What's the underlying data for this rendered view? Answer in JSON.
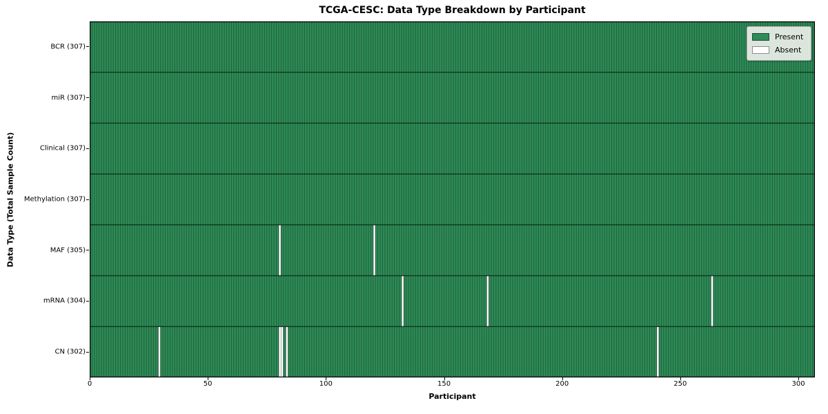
{
  "chart_data": {
    "type": "heatmap",
    "title": "TCGA-CESC: Data Type Breakdown by Participant",
    "xlabel": "Participant",
    "ylabel": "Data Type (Total Sample Count)",
    "n_participants": 307,
    "x_range": [
      0,
      307
    ],
    "x_ticks": [
      0,
      50,
      100,
      150,
      200,
      250,
      300
    ],
    "grid": "cell-edges",
    "legend_position": "upper right",
    "legend": [
      {
        "label": "Present",
        "color": "#2e8b57"
      },
      {
        "label": "Absent",
        "color": "#ffffff"
      }
    ],
    "rows": [
      {
        "label": "BCR (307)",
        "name": "BCR",
        "total": 307,
        "absent_participants": []
      },
      {
        "label": "miR (307)",
        "name": "miR",
        "total": 307,
        "absent_participants": []
      },
      {
        "label": "Clinical (307)",
        "name": "Clinical",
        "total": 307,
        "absent_participants": []
      },
      {
        "label": "Methylation (307)",
        "name": "Methylation",
        "total": 307,
        "absent_participants": []
      },
      {
        "label": "MAF (305)",
        "name": "MAF",
        "total": 305,
        "absent_participants": [
          80,
          120
        ]
      },
      {
        "label": "mRNA (304)",
        "name": "mRNA",
        "total": 304,
        "absent_participants": [
          132,
          168,
          263
        ]
      },
      {
        "label": "CN (302)",
        "name": "CN",
        "total": 302,
        "absent_participants": [
          29,
          80,
          81,
          83,
          240
        ]
      }
    ],
    "colors": {
      "present": "#2e8b57",
      "absent": "#ffffff",
      "cell_edge": "#0e2f1c",
      "row_line": "#0a2315",
      "spine": "#000000",
      "text": "#000000"
    }
  }
}
